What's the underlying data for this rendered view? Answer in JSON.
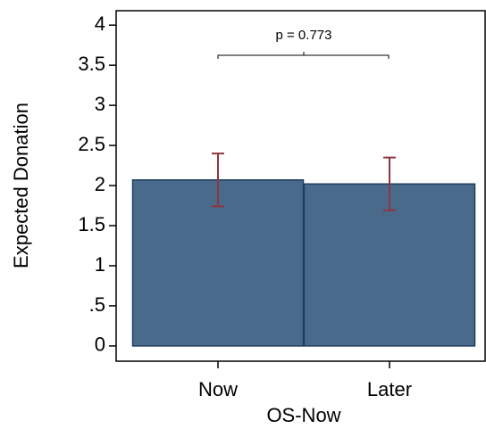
{
  "chart_data": {
    "type": "bar",
    "categories": [
      "Now",
      "Later"
    ],
    "values": [
      2.07,
      2.02
    ],
    "errors": [
      0.33,
      0.33
    ],
    "color": "#4a6a8c",
    "edge_color": "#1f3f60",
    "error_color": "#8f3540",
    "ylabel": "Expected Donation",
    "xlabel": "OS-Now",
    "annotation": "p = 0.773",
    "ylim": [
      -0.19,
      4.18
    ],
    "yticks": [
      0,
      {
        "value": 0.5,
        "label": ".5"
      },
      1,
      1.5,
      2,
      2.5,
      3,
      3.5,
      4
    ],
    "grid": false
  }
}
